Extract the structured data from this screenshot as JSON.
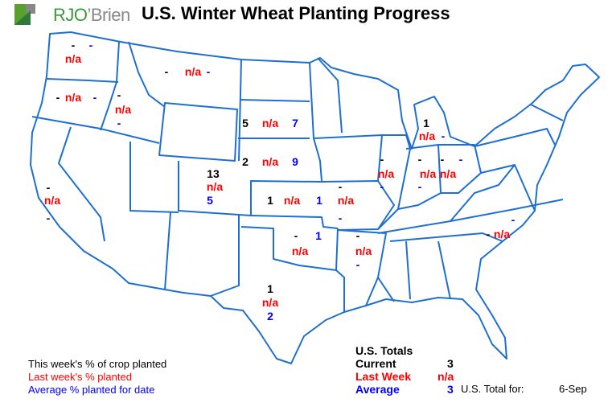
{
  "title": "U.S. Winter Wheat Planting Progress",
  "logo": {
    "text_green": "RJO",
    "text_gray": "’Brien"
  },
  "colors": {
    "current": "#000000",
    "last_week": "#ff0000",
    "average": "#0000ff",
    "border": "#1e6fd0"
  },
  "states": {
    "WA": {
      "current": "-",
      "last_week": "n/a",
      "average": "-"
    },
    "OR": {
      "current": "-",
      "last_week": "n/a",
      "average": "-"
    },
    "ID": {
      "current": "-",
      "last_week": "n/a",
      "average": "-"
    },
    "MT": {
      "current": "-",
      "last_week": "n/a",
      "average": "-"
    },
    "CA": {
      "current": "-",
      "last_week": "n/a",
      "average": "-"
    },
    "SD": {
      "current": "5",
      "last_week": "n/a",
      "average": "7"
    },
    "NE": {
      "current": "2",
      "last_week": "n/a",
      "average": "9"
    },
    "CO": {
      "current": "13",
      "last_week": "n/a",
      "average": "5"
    },
    "KS": {
      "current": "1",
      "last_week": "n/a",
      "average": "1"
    },
    "OK": {
      "current": "-",
      "last_week": "n/a",
      "average": "1"
    },
    "TX": {
      "current": "1",
      "last_week": "n/a",
      "average": "2"
    },
    "MO": {
      "current": "-",
      "last_week": "n/a",
      "average": "-"
    },
    "AR": {
      "current": "-",
      "last_week": "n/a",
      "average": "-"
    },
    "IL": {
      "current": "-",
      "last_week": "n/a",
      "average": "-"
    },
    "IN": {
      "current": "-",
      "last_week": "n/a",
      "average": "-"
    },
    "OH": {
      "current": "-",
      "last_week": "n/a",
      "average": "-"
    },
    "MI": {
      "current": "1",
      "last_week": "n/a",
      "average": "-"
    },
    "NC": {
      "current": "-",
      "last_week": "n/a",
      "average": "-"
    }
  },
  "legend": {
    "current": "This week's % of crop planted",
    "last_week": "Last week's % planted",
    "average": "Average % planted for date"
  },
  "totals": {
    "heading": "U.S. Totals",
    "current_label": "Current",
    "current_value": "3",
    "last_week_label": "Last Week",
    "last_week_value": "n/a",
    "average_label": "Average",
    "average_value": "3",
    "date_label": "U.S. Total for:",
    "date_value": "6-Sep"
  }
}
